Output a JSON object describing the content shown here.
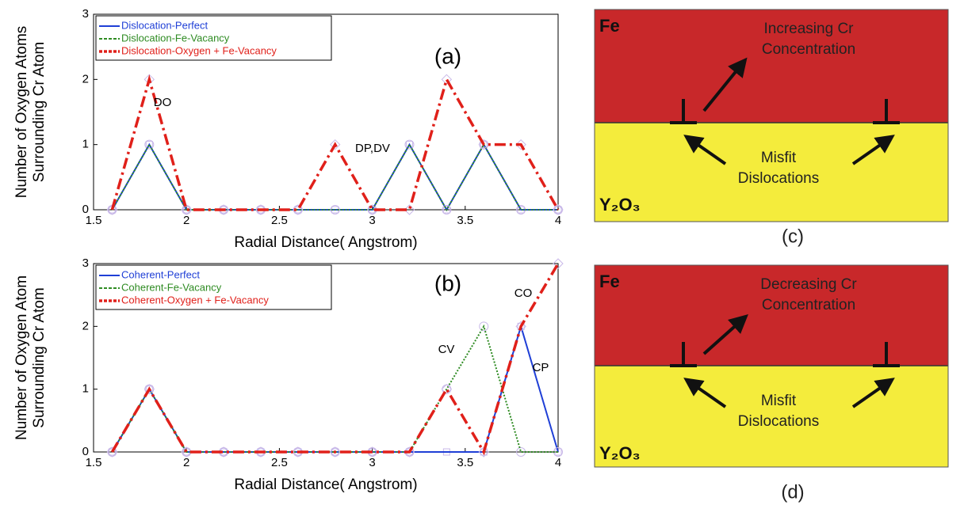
{
  "chart_data": [
    {
      "type": "line",
      "panel_label": "(a)",
      "xlabel": "Radial Distance( Angstrom)",
      "ylabel": [
        "Number of Oxygen Atoms",
        "Surrounding Cr Atom"
      ],
      "x": [
        1.6,
        1.8,
        2.0,
        2.2,
        2.4,
        2.6,
        2.8,
        3.0,
        3.2,
        3.4,
        3.6,
        3.8,
        4.0
      ],
      "series": [
        {
          "name": "Dislocation-Perfect",
          "color": "#1f3fd6",
          "values": [
            0,
            1,
            0,
            0,
            0,
            0,
            0,
            0,
            1,
            0,
            1,
            0,
            0
          ]
        },
        {
          "name": "Dislocation-Fe-Vacancy",
          "color": "#2e8b22",
          "values": [
            0,
            1,
            0,
            0,
            0,
            0,
            0,
            0,
            1,
            0,
            1,
            0,
            0
          ]
        },
        {
          "name": "Dislocation-Oxygen + Fe-Vacancy",
          "color": "#e0201a",
          "values": [
            0,
            2,
            0,
            0,
            0,
            0,
            1,
            0,
            0,
            2,
            1,
            1,
            0
          ]
        }
      ],
      "annotations": [
        "DO",
        "DP,DV"
      ],
      "xlim": [
        1.5,
        4
      ],
      "xticks": [
        1.5,
        2,
        2.5,
        3,
        3.5,
        4
      ],
      "ylim": [
        0,
        3
      ],
      "yticks": [
        0,
        1,
        2,
        3
      ]
    },
    {
      "type": "line",
      "panel_label": "(b)",
      "xlabel": "Radial Distance( Angstrom)",
      "ylabel": [
        "Number of Oxygen Atom",
        "Surrounding Cr Atom"
      ],
      "x": [
        1.6,
        1.8,
        2.0,
        2.2,
        2.4,
        2.6,
        2.8,
        3.0,
        3.2,
        3.4,
        3.6,
        3.8,
        4.0
      ],
      "series": [
        {
          "name": "Coherent-Perfect",
          "color": "#1f3fd6",
          "values": [
            0,
            1,
            0,
            0,
            0,
            0,
            0,
            0,
            0,
            0,
            0,
            2,
            0
          ]
        },
        {
          "name": "Coherent-Fe-Vacancy",
          "color": "#2e8b22",
          "values": [
            0,
            1,
            0,
            0,
            0,
            0,
            0,
            0,
            0,
            1,
            2,
            0,
            0
          ]
        },
        {
          "name": "Coherent-Oxygen + Fe-Vacancy",
          "color": "#e0201a",
          "values": [
            0,
            1,
            0,
            0,
            0,
            0,
            0,
            0,
            0,
            1,
            0,
            2,
            3
          ]
        }
      ],
      "annotations": [
        "CV",
        "CO",
        "CP"
      ],
      "xlim": [
        1.5,
        4
      ],
      "xticks": [
        1.5,
        2,
        2.5,
        3,
        3.5,
        4
      ],
      "ylim": [
        0,
        3
      ],
      "yticks": [
        0,
        1,
        2,
        3
      ]
    }
  ],
  "diagrams": [
    {
      "top_label": "Fe",
      "arrow_text": [
        "Increasing Cr",
        "Concentration"
      ],
      "misfit_text": [
        "Misfit",
        "Dislocations"
      ],
      "bottom_label": "Y₂O₃",
      "caption": "(c)"
    },
    {
      "top_label": "Fe",
      "arrow_text": [
        "Decreasing Cr",
        "Concentration"
      ],
      "misfit_text": [
        "Misfit",
        "Dislocations"
      ],
      "bottom_label": "Y₂O₃",
      "caption": "(d)"
    }
  ]
}
